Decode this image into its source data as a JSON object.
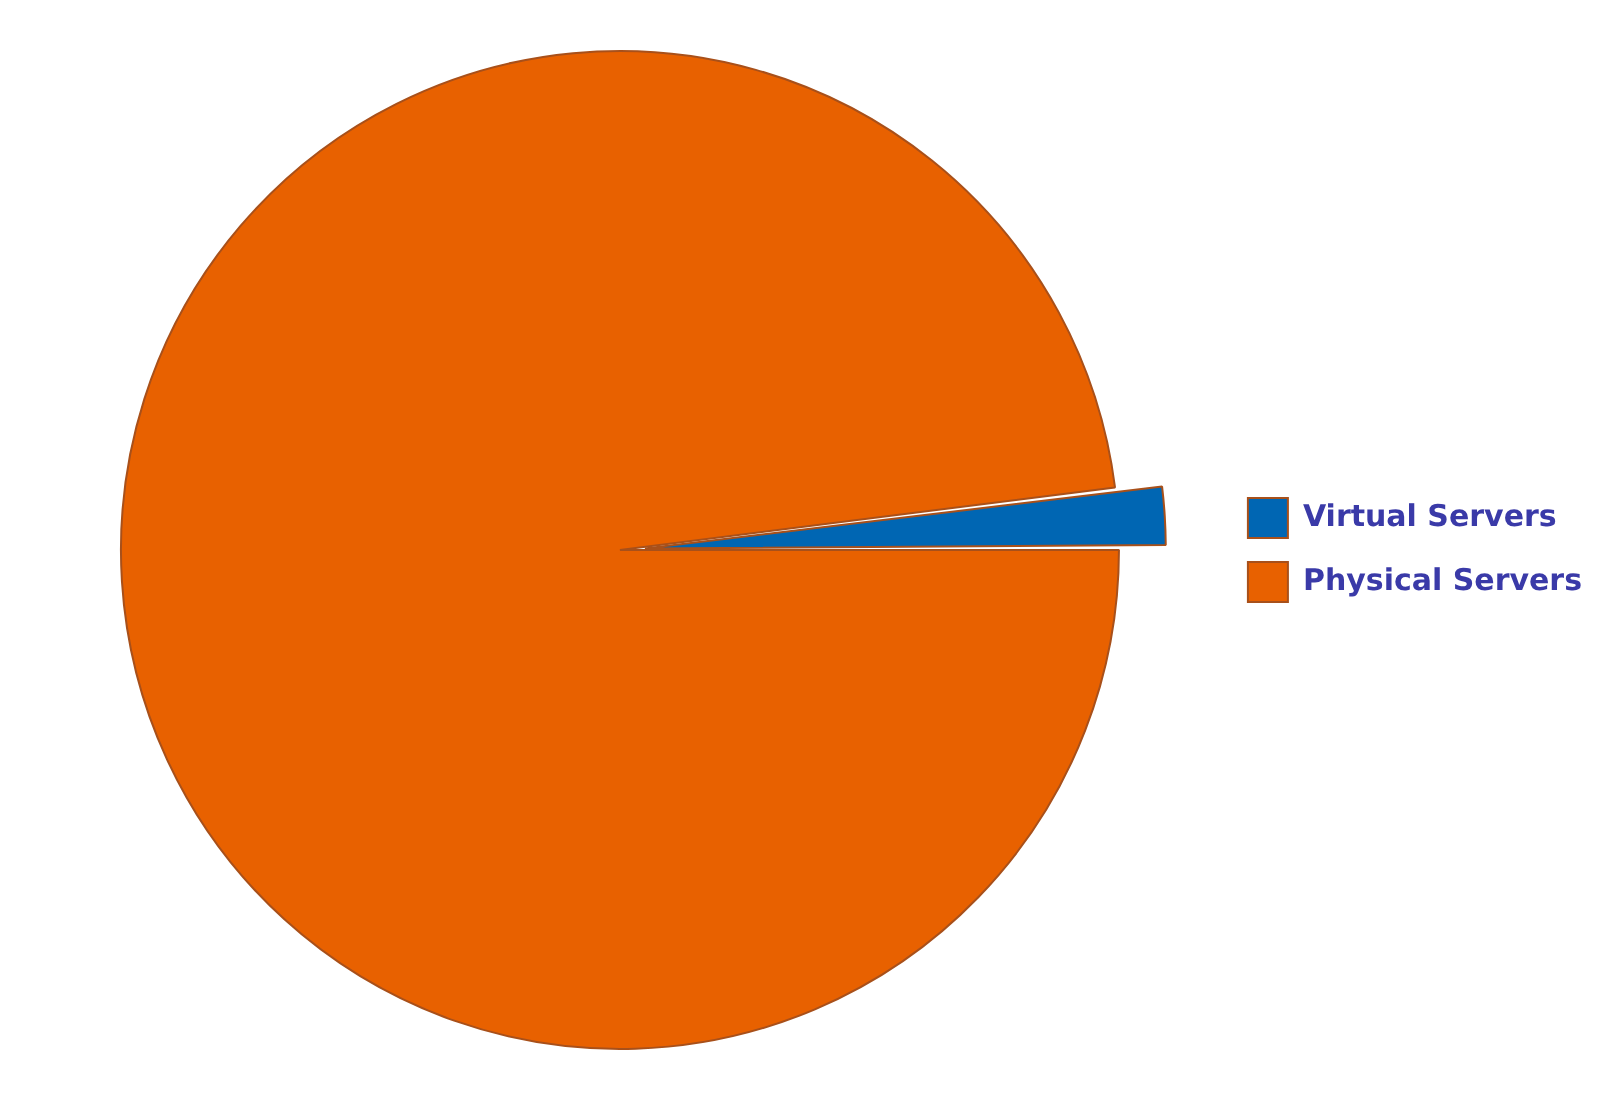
{
  "chart_data": {
    "type": "pie",
    "categories": [
      "Virtual Servers",
      "Physical Servers"
    ],
    "values": [
      2,
      98
    ],
    "colors": [
      "#0066b3",
      "#e86100"
    ],
    "legend": "right"
  }
}
